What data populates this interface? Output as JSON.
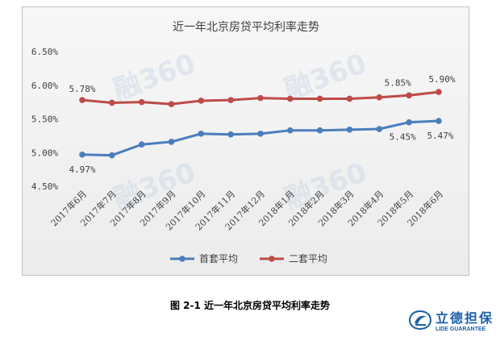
{
  "chart_data": {
    "type": "line",
    "title": "近一年北京房贷平均利率走势",
    "categories": [
      "2017年6月",
      "2017年7月",
      "2017年8月",
      "2017年9月",
      "2017年10月",
      "2017年11月",
      "2017年12月",
      "2018年1月",
      "2018年2月",
      "2018年3月",
      "2018年4月",
      "2018年5月",
      "2018年6月"
    ],
    "ylim": [
      4.5,
      6.5
    ],
    "yticks": [
      "4.50%",
      "5.00%",
      "5.50%",
      "6.00%",
      "6.50%"
    ],
    "series": [
      {
        "name": "首套平均",
        "color": "#4a7ebb",
        "values": [
          4.97,
          4.96,
          5.12,
          5.16,
          5.28,
          5.27,
          5.28,
          5.33,
          5.33,
          5.34,
          5.35,
          5.45,
          5.47
        ]
      },
      {
        "name": "二套平均",
        "color": "#be4b48",
        "values": [
          5.78,
          5.74,
          5.75,
          5.72,
          5.77,
          5.78,
          5.81,
          5.8,
          5.8,
          5.8,
          5.82,
          5.85,
          5.9
        ]
      }
    ],
    "data_labels": [
      {
        "series": 0,
        "index": 0,
        "text": "4.97%"
      },
      {
        "series": 0,
        "index": 11,
        "text": "5.45%"
      },
      {
        "series": 0,
        "index": 12,
        "text": "5.47%"
      },
      {
        "series": 1,
        "index": 0,
        "text": "5.78%"
      },
      {
        "series": 1,
        "index": 11,
        "text": "5.85%"
      },
      {
        "series": 1,
        "index": 12,
        "text": "5.90%"
      }
    ],
    "grid": false,
    "legend": "bottom"
  },
  "watermark": "融360 Rong360.com",
  "caption": "图 2-1  近一年北京房贷平均利率走势",
  "logo": {
    "cn": "立德担保",
    "en": "LIDE GUARANTEE",
    "color": "#1b5fa8"
  }
}
